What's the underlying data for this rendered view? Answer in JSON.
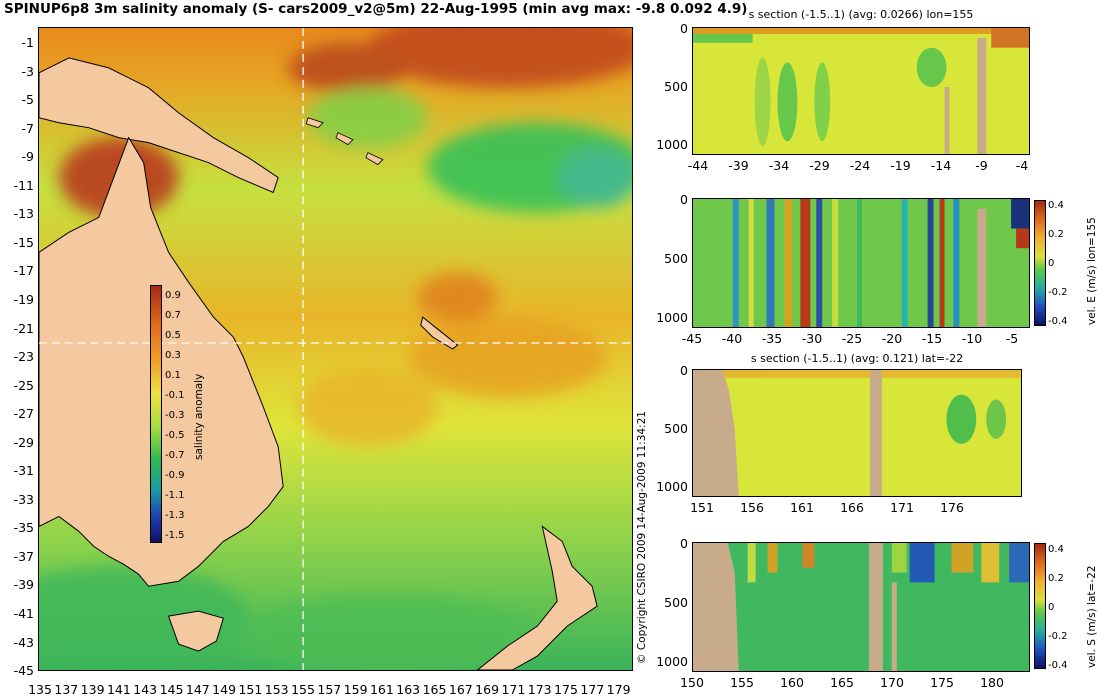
{
  "title": "SPINUP6p8 3m salinity anomaly (S- cars2009_v2@5m) 22-Aug-1995 (min avg max: -9.8 0.092 4.9)",
  "map": {
    "lat_labels": [
      "-1",
      "-3",
      "-5",
      "-7",
      "-9",
      "-11",
      "-13",
      "-15",
      "-17",
      "-19",
      "-21",
      "-23",
      "-25",
      "-27",
      "-29",
      "-31",
      "-33",
      "-35",
      "-37",
      "-39",
      "-41",
      "-43",
      "-45"
    ],
    "lon_labels": [
      "135",
      "137",
      "139",
      "141",
      "143",
      "145",
      "147",
      "149",
      "151",
      "153",
      "155",
      "157",
      "159",
      "161",
      "163",
      "165",
      "167",
      "169",
      "171",
      "173",
      "175",
      "177",
      "179"
    ],
    "colorbar": {
      "label": "salinity anomaly",
      "ticks": [
        "0.9",
        "0.7",
        "0.5",
        "0.3",
        "0.1",
        "-0.1",
        "-0.3",
        "-0.5",
        "-0.7",
        "-0.9",
        "-1.1",
        "-1.3",
        "-1.5"
      ]
    }
  },
  "sections": [
    {
      "title": "s section (-1.5..1) (avg: 0.0266) lon=155",
      "x_ticks": [
        "-44",
        "-39",
        "-34",
        "-29",
        "-24",
        "-19",
        "-14",
        "-9",
        "-4"
      ],
      "y_ticks": [
        "0",
        "500",
        "1000"
      ]
    },
    {
      "title": "",
      "x_ticks": [
        "-45",
        "-40",
        "-35",
        "-30",
        "-25",
        "-20",
        "-15",
        "-10",
        "-5"
      ],
      "y_ticks": [
        "0",
        "500",
        "1000"
      ],
      "colorbar": {
        "label": "vel. E (m/s) lon=155",
        "ticks": [
          "0.4",
          "0.2",
          "0",
          "-0.2",
          "-0.4"
        ]
      }
    },
    {
      "title": "s section (-1.5..1) (avg: 0.121) lat=-22",
      "x_ticks": [
        "151",
        "156",
        "161",
        "166",
        "171",
        "176"
      ],
      "y_ticks": [
        "0",
        "500",
        "1000"
      ]
    },
    {
      "title": "",
      "x_ticks": [
        "150",
        "155",
        "160",
        "165",
        "170",
        "175",
        "180"
      ],
      "y_ticks": [
        "0",
        "500",
        "1000"
      ],
      "colorbar": {
        "label": "vel. S (m/s) lat=-22",
        "ticks": [
          "0.4",
          "0.2",
          "0",
          "-0.2",
          "-0.4"
        ]
      }
    }
  ],
  "copyright": "© Copyright CSIRO 2009   14-Aug-2009 11:34:21",
  "colors": {
    "land": "#f5c9a0",
    "seabed": "#c8ab8a",
    "ocean_base": "#d8e63a",
    "grid_line": "#ffffff"
  }
}
